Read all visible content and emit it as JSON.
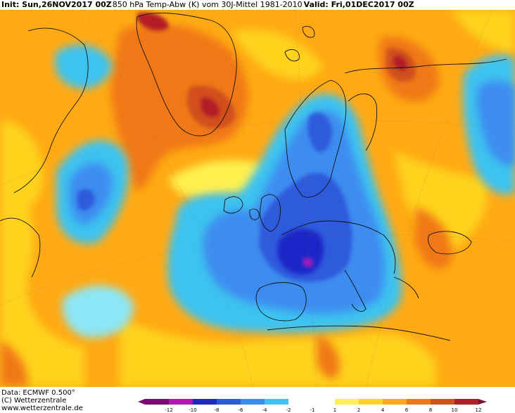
{
  "header": {
    "init": "Init: Sun,26NOV2017 00Z",
    "title": "850 hPa Temp-Abw (K) vom 30J-Mittel 1981-2010",
    "valid": "Valid: Fri,01DEC2017 00Z"
  },
  "footer": {
    "data_line": "Data: ECMWF  0.500°",
    "copyright": "(C) Wetterzentrale",
    "url": "www.wetterzentrale.de"
  },
  "scale": {
    "labels": [
      "-12",
      "-10",
      "-8",
      "-6",
      "-4",
      "-2",
      "-1",
      "1",
      "2",
      "4",
      "6",
      "8",
      "10",
      "12"
    ],
    "colors": {
      "m12": "#7a0a72",
      "m10": "#b514b0",
      "m8": "#1e28c8",
      "m6": "#2d5adc",
      "m4": "#3d8cf0",
      "m2": "#3cc3f0",
      "m1": "#8ce6f5",
      "zero": "#ffffff",
      "p1": "#fff050",
      "p2": "#ffd21e",
      "p4": "#ffaa14",
      "p6": "#f07814",
      "p8": "#d2501e",
      "p10": "#b41e28",
      "p12": "#781432"
    }
  },
  "map": {
    "projection": "polar stereographic, North Atlantic / Europe",
    "field": "850 hPa temperature anomaly (K)"
  }
}
